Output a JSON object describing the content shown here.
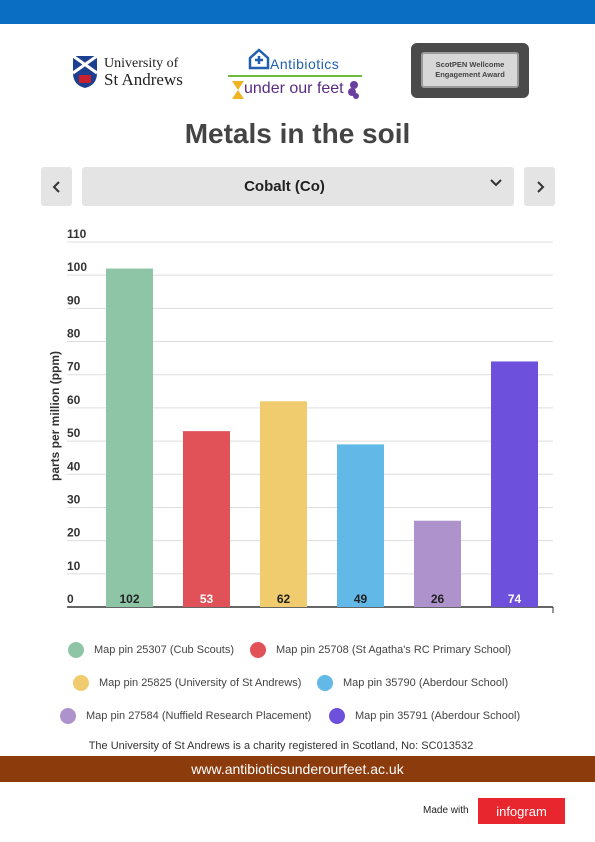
{
  "header": {
    "university_line1": "University of",
    "university_line2": "St Andrews",
    "project_title": "Antibiotics",
    "project_subtitle": "under our feet",
    "award_text": "ScotPEN Wellcome Engagement Award"
  },
  "title": "Metals in the soil",
  "selector": {
    "prev_icon": "chevron-left-icon",
    "next_icon": "chevron-right-icon",
    "selected": "Cobalt (Co)"
  },
  "chart_data": {
    "type": "bar",
    "ylabel": "parts per million (ppm)",
    "ylim": [
      0,
      110
    ],
    "yticks": [
      0,
      10,
      20,
      30,
      40,
      50,
      60,
      70,
      80,
      90,
      100,
      110
    ],
    "grid": true,
    "legend_position": "bottom",
    "categories": [
      "Map pin 25307 (Cub Scouts)",
      "Map pin 25708 (St Agatha's RC Primary School)",
      "Map pin 25825 (University of St Andrews)",
      "Map pin 35790 (Aberdour School)",
      "Map pin 27584 (Nuffield Research Placement)",
      "Map pin 35791 (Aberdour School)"
    ],
    "values": [
      102,
      53,
      62,
      49,
      26,
      74
    ],
    "colors": [
      "#8ec5a7",
      "#e05257",
      "#f0cc6e",
      "#62b8e6",
      "#ad92cc",
      "#6d50dc"
    ],
    "label_colors": [
      "#222222",
      "#ffffff",
      "#222222",
      "#222222",
      "#222222",
      "#ffffff"
    ]
  },
  "footer": {
    "charity": "The University of St Andrews is a charity registered in Scotland, No: SC013532",
    "url": "www.antibioticsunderourfeet.ac.uk",
    "made_with": "Made with",
    "brand": "infogram"
  }
}
